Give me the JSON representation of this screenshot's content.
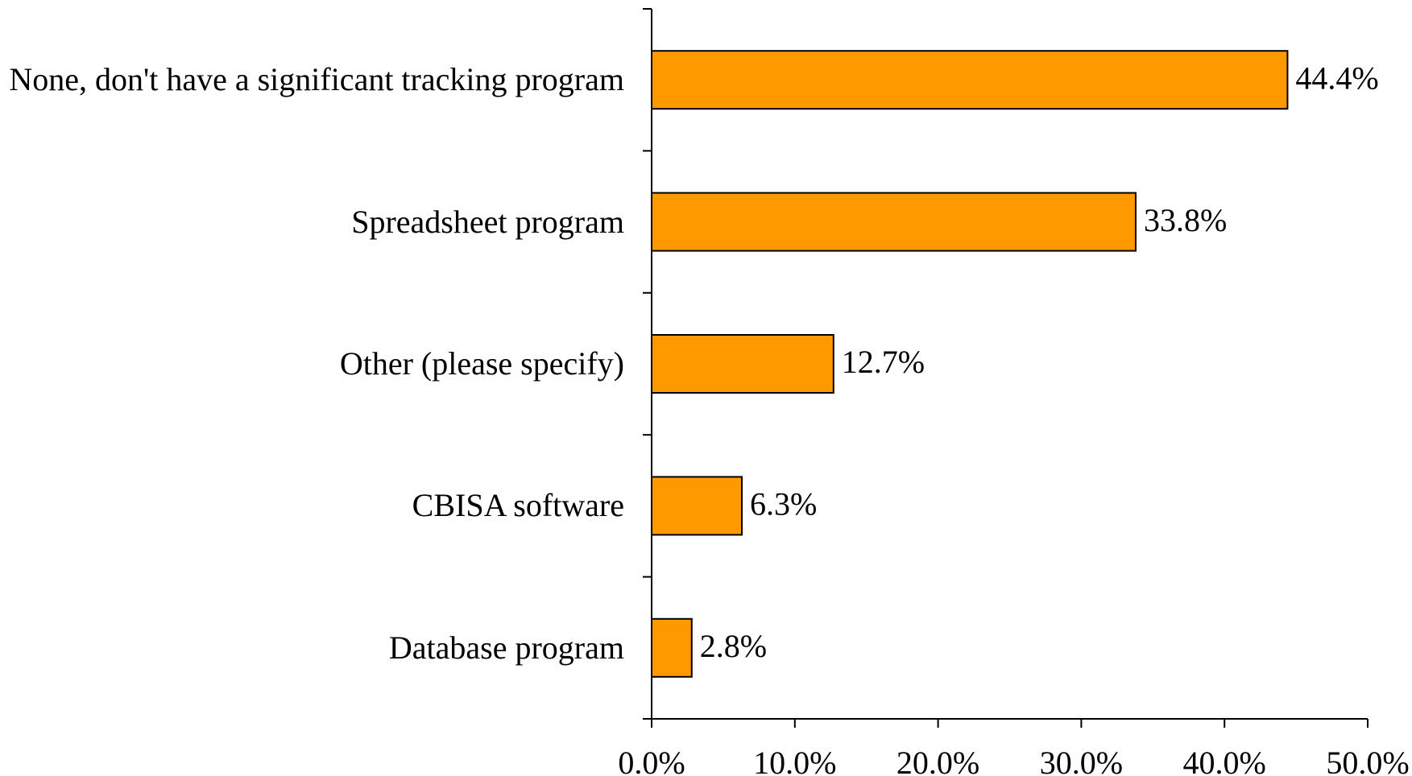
{
  "chart_data": {
    "type": "bar",
    "orientation": "horizontal",
    "categories": [
      "None, don't have a significant tracking program",
      "Spreadsheet program",
      "Other (please specify)",
      "CBISA software",
      "Database program"
    ],
    "values": [
      44.4,
      33.8,
      12.7,
      6.3,
      2.8
    ],
    "value_labels": [
      "44.4%",
      "33.8%",
      "12.7%",
      "6.3%",
      "2.8%"
    ],
    "color": "#ff9900",
    "xlim": [
      0,
      50
    ],
    "xticks": [
      {
        "value": 0,
        "label": "0.0%"
      },
      {
        "value": 10,
        "label": "10.0%"
      },
      {
        "value": 20,
        "label": "20.0%"
      },
      {
        "value": 30,
        "label": "30.0%"
      },
      {
        "value": 40,
        "label": "40.0%"
      },
      {
        "value": 50,
        "label": "50.0%"
      }
    ]
  }
}
